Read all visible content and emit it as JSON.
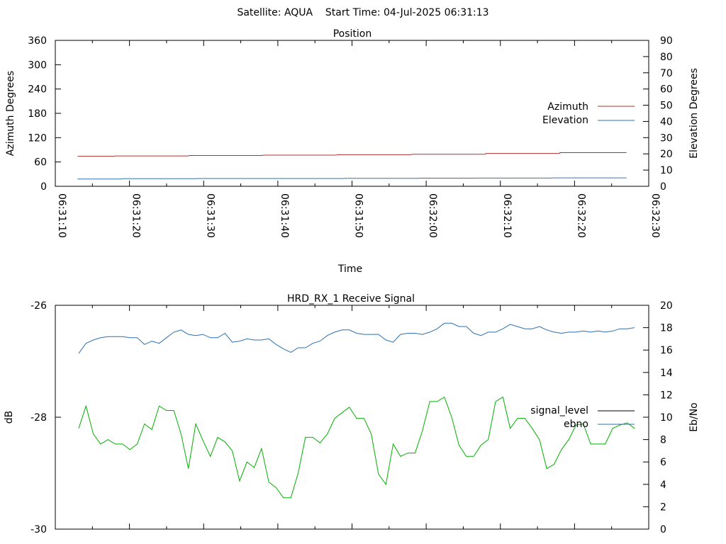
{
  "header": {
    "text": "Satellite: AQUA    Start Time: 04-Jul-2025 06:31:13"
  },
  "colors": {
    "azimuth": "#b03030",
    "elevation": "#3070b0",
    "signal_level": "#000000",
    "ebno_green": "#00b000",
    "ebno_blue": "#2e6fb0"
  },
  "chart_data": [
    {
      "type": "line",
      "title": "Position",
      "xlabel": "Time",
      "ylabel": "Azimuth Degrees",
      "y2label": "Elevation Degrees",
      "xlim": [
        "06:31:10",
        "06:32:30"
      ],
      "ylim": [
        0,
        360
      ],
      "y2lim": [
        0,
        90
      ],
      "x_ticks": [
        "06:31:10",
        "06:31:20",
        "06:31:30",
        "06:31:40",
        "06:31:50",
        "06:32:00",
        "06:32:10",
        "06:32:20",
        "06:32:30"
      ],
      "y_ticks": [
        "0",
        "60",
        "120",
        "180",
        "240",
        "300",
        "360"
      ],
      "y2_ticks": [
        "0",
        "10",
        "20",
        "30",
        "40",
        "50",
        "60",
        "70",
        "80",
        "90"
      ],
      "legend": "right",
      "series": [
        {
          "name": "Azimuth",
          "axis": "y",
          "x": [
            "06:31:13",
            "06:31:18",
            "06:31:28",
            "06:31:38",
            "06:31:48",
            "06:31:58",
            "06:32:08",
            "06:32:18",
            "06:32:27"
          ],
          "values": [
            74,
            75,
            76,
            77,
            78,
            79,
            81,
            83,
            85
          ]
        },
        {
          "name": "Elevation",
          "axis": "y2",
          "x": [
            "06:31:13",
            "06:31:19",
            "06:31:29",
            "06:31:39",
            "06:31:49",
            "06:31:59",
            "06:32:07",
            "06:32:17",
            "06:32:27"
          ],
          "values": [
            4.5,
            4.7,
            4.8,
            4.8,
            4.9,
            5.0,
            5.1,
            5.2,
            5.3
          ]
        }
      ]
    },
    {
      "type": "line",
      "title": "HRD_RX_1 Receive Signal",
      "ylabel": "dB",
      "y2label": "Eb/No",
      "ylim": [
        -30,
        -26
      ],
      "y2lim": [
        0,
        20
      ],
      "y_ticks": [
        "-30",
        "-28",
        "-26"
      ],
      "y2_ticks": [
        "0",
        "2",
        "4",
        "6",
        "8",
        "10",
        "12",
        "14",
        "16",
        "18",
        "20"
      ],
      "legend": "right",
      "series": [
        {
          "name": "signal_level",
          "axis": "y",
          "values": []
        },
        {
          "name": "ebno",
          "axis": "y2",
          "values": [
            15.7,
            16.6,
            16.9,
            17.1,
            17.2,
            17.2,
            17.2,
            17.1,
            17.1,
            16.5,
            16.8,
            16.6,
            17.1,
            17.6,
            17.8,
            17.4,
            17.3,
            17.4,
            17.1,
            17.1,
            17.5,
            16.7,
            16.8,
            17.0,
            16.9,
            16.9,
            17.0,
            16.5,
            16.1,
            15.8,
            16.2,
            16.2,
            16.6,
            16.8,
            17.3,
            17.6,
            17.8,
            17.8,
            17.5,
            17.4,
            17.4,
            17.4,
            16.9,
            16.7,
            17.4,
            17.5,
            17.5,
            17.4,
            17.6,
            17.9,
            18.4,
            18.4,
            18.1,
            18.1,
            17.5,
            17.3,
            17.6,
            17.6,
            17.9,
            18.3,
            18.1,
            17.9,
            17.9,
            18.1,
            17.8,
            17.6,
            17.5,
            17.6,
            17.6,
            17.7,
            17.6,
            17.7,
            17.6,
            17.7,
            17.9,
            17.9,
            18.0
          ]
        },
        {
          "name": "",
          "axis": "y2",
          "values": [
            9.0,
            11.0,
            8.5,
            7.6,
            8.0,
            7.6,
            7.6,
            7.1,
            7.6,
            9.4,
            8.9,
            11.0,
            10.6,
            10.6,
            8.5,
            5.4,
            9.4,
            7.9,
            6.5,
            8.2,
            7.8,
            7.0,
            4.3,
            6.0,
            5.5,
            7.2,
            4.2,
            3.7,
            2.8,
            2.8,
            5.0,
            8.2,
            8.2,
            7.7,
            8.5,
            9.9,
            10.4,
            10.9,
            9.9,
            9.9,
            8.5,
            4.9,
            4.0,
            7.6,
            6.5,
            6.8,
            6.8,
            8.8,
            11.4,
            11.4,
            11.8,
            10.0,
            7.5,
            6.5,
            6.5,
            7.5,
            8.0,
            11.4,
            11.8,
            9.0,
            9.9,
            9.9,
            9.0,
            8.0,
            5.4,
            5.8,
            7.1,
            8.0,
            9.3,
            9.4,
            7.6,
            7.6,
            7.6,
            9.0,
            9.3,
            9.5,
            9.0
          ]
        }
      ]
    }
  ]
}
